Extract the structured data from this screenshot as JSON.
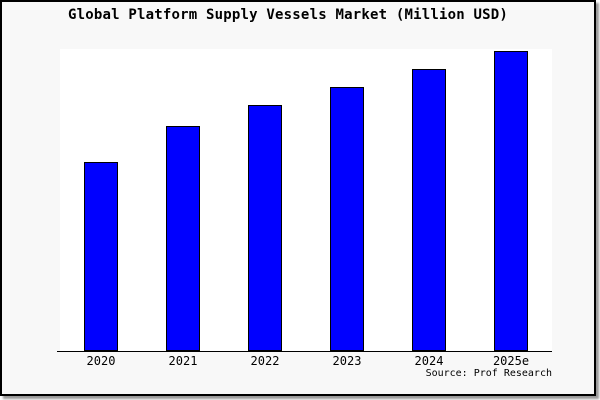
{
  "chart_data": {
    "type": "bar",
    "title": "Global Platform Supply Vessels Market (Million USD)",
    "categories": [
      "2020",
      "2021",
      "2022",
      "2023",
      "2024",
      "2025e"
    ],
    "values": [
      63,
      75,
      82,
      88,
      94,
      100
    ],
    "units": "relative height index (no y-axis scale shown; 2025e = 100)",
    "xlabel": "",
    "ylabel": "",
    "ylim": [
      0,
      100.5
    ],
    "grid": false,
    "legend": false,
    "bar_color": "#0000ff",
    "bar_edge_color": "#000000",
    "plot_bg": "#ffffff",
    "figure_bg": "#f8f8f8",
    "source_note": "Source: Prof Research"
  }
}
